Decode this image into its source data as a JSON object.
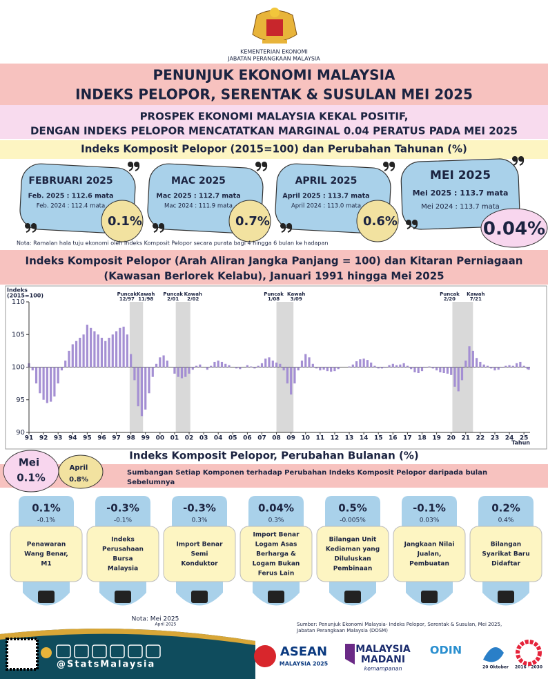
{
  "header": {
    "ministry": "KEMENTERIAN EKONOMI",
    "department": "JABATAN PERANGKAAN MALAYSIA"
  },
  "title_lines": [
    "PENUNJUK EKONOMI MALAYSIA",
    "INDEKS PELOPOR, SERENTAK & SUSULAN MEI 2025"
  ],
  "subtitle_lines": [
    "PROSPEK EKONOMI MALAYSIA KEKAL POSITIF,",
    "DENGAN INDEKS PELOPOR MENCATATKAN MARGINAL 0.04 PERATUS PADA MEI 2025"
  ],
  "annual_section": {
    "title": "Indeks Komposit Pelopor (2015=100) dan Perubahan Tahunan (%)",
    "cards": [
      {
        "month": "FEBRUARI 2025",
        "current": "Feb. 2025 : 112.6 mata",
        "previous": "Feb. 2024 : 112.4 mata",
        "change": "0.1%"
      },
      {
        "month": "MAC 2025",
        "current": "Mac 2025 : 112.7 mata",
        "previous": "Mac 2024 : 111.9 mata",
        "change": "0.7%"
      },
      {
        "month": "APRIL 2025",
        "current": "April 2025 : 113.7 mata",
        "previous": "April 2024 : 113.0 mata",
        "change": "0.6%"
      },
      {
        "month": "MEI 2025",
        "current": "Mei 2025 : 113.7 mata",
        "previous": "Mei 2024 : 113.7 mata",
        "change": "0.04%"
      }
    ],
    "note": "Nota: Ramalan hala tuju ekonomi oleh Indeks Komposit Pelopor secara purata bagi 4 hingga 6 bulan ke hadapan"
  },
  "chart_data": {
    "type": "bar",
    "title_lines": [
      "Indeks Komposit Pelopor (Arah Aliran Jangka Panjang = 100) dan Kitaran Perniagaan",
      "(Kawasan Berlorek Kelabu), Januari 1991 hingga Mei 2025"
    ],
    "ylabel_lines": [
      "Indeks",
      "(2015=100)"
    ],
    "xlabel": "Tahun",
    "color": "#a48fd3",
    "baseline": 100,
    "ylim": [
      90,
      110
    ],
    "yticks": [
      90,
      95,
      100,
      105,
      110
    ],
    "xlim": [
      1991,
      2025.42
    ],
    "xticks": [
      {
        "value": 1991,
        "label": "91"
      },
      {
        "value": 1992,
        "label": "92"
      },
      {
        "value": 1993,
        "label": "93"
      },
      {
        "value": 1994,
        "label": "94"
      },
      {
        "value": 1995,
        "label": "95"
      },
      {
        "value": 1996,
        "label": "96"
      },
      {
        "value": 1997,
        "label": "97"
      },
      {
        "value": 1998,
        "label": "98"
      },
      {
        "value": 1999,
        "label": "99"
      },
      {
        "value": 2000,
        "label": "00"
      },
      {
        "value": 2001,
        "label": "01"
      },
      {
        "value": 2002,
        "label": "02"
      },
      {
        "value": 2003,
        "label": "03"
      },
      {
        "value": 2004,
        "label": "04"
      },
      {
        "value": 2005,
        "label": "05"
      },
      {
        "value": 2006,
        "label": "06"
      },
      {
        "value": 2007,
        "label": "07"
      },
      {
        "value": 2008,
        "label": "08"
      },
      {
        "value": 2009,
        "label": "09"
      },
      {
        "value": 2010,
        "label": "10"
      },
      {
        "value": 2011,
        "label": "11"
      },
      {
        "value": 2012,
        "label": "12"
      },
      {
        "value": 2013,
        "label": "13"
      },
      {
        "value": 2014,
        "label": "14"
      },
      {
        "value": 2015,
        "label": "15"
      },
      {
        "value": 2016,
        "label": "16"
      },
      {
        "value": 2017,
        "label": "17"
      },
      {
        "value": 2018,
        "label": "18"
      },
      {
        "value": 2019,
        "label": "19"
      },
      {
        "value": 2020,
        "label": "20"
      },
      {
        "value": 2021,
        "label": "21"
      },
      {
        "value": 2022,
        "label": "22"
      },
      {
        "value": 2023,
        "label": "23"
      },
      {
        "value": 2024,
        "label": "24"
      },
      {
        "value": 2025,
        "label": "25"
      }
    ],
    "shaded_regions": [
      {
        "start": 1997.917,
        "end": 1998.833,
        "peak_label": "Puncak",
        "peak_date": "12/97",
        "trough_label": "Kawah",
        "trough_date": "11/98"
      },
      {
        "start": 2001.083,
        "end": 2002.083,
        "peak_label": "Puncak",
        "peak_date": "2/01",
        "trough_label": "Kawah",
        "trough_date": "2/02"
      },
      {
        "start": 2008.0,
        "end": 2009.167,
        "peak_label": "Puncak",
        "peak_date": "1/08",
        "trough_label": "Kawah",
        "trough_date": "3/09"
      },
      {
        "start": 2020.083,
        "end": 2021.5,
        "peak_label": "Puncak",
        "peak_date": "2/20",
        "trough_label": "Kawah",
        "trough_date": "7/21"
      }
    ],
    "x": [
      1991,
      1991.25,
      1991.5,
      1991.75,
      1992,
      1992.25,
      1992.5,
      1992.75,
      1993,
      1993.25,
      1993.5,
      1993.75,
      1994,
      1994.25,
      1994.5,
      1994.75,
      1995,
      1995.25,
      1995.5,
      1995.75,
      1996,
      1996.25,
      1996.5,
      1996.75,
      1997,
      1997.25,
      1997.5,
      1997.75,
      1998,
      1998.25,
      1998.5,
      1998.75,
      1999,
      1999.25,
      1999.5,
      1999.75,
      2000,
      2000.25,
      2000.5,
      2000.75,
      2001,
      2001.25,
      2001.5,
      2001.75,
      2002,
      2002.25,
      2002.5,
      2002.75,
      2003,
      2003.25,
      2003.5,
      2003.75,
      2004,
      2004.25,
      2004.5,
      2004.75,
      2005,
      2005.25,
      2005.5,
      2005.75,
      2006,
      2006.25,
      2006.5,
      2006.75,
      2007,
      2007.25,
      2007.5,
      2007.75,
      2008,
      2008.25,
      2008.5,
      2008.75,
      2009,
      2009.25,
      2009.5,
      2009.75,
      2010,
      2010.25,
      2010.5,
      2010.75,
      2011,
      2011.25,
      2011.5,
      2011.75,
      2012,
      2012.25,
      2012.5,
      2012.75,
      2013,
      2013.25,
      2013.5,
      2013.75,
      2014,
      2014.25,
      2014.5,
      2014.75,
      2015,
      2015.25,
      2015.5,
      2015.75,
      2016,
      2016.25,
      2016.5,
      2016.75,
      2017,
      2017.25,
      2017.5,
      2017.75,
      2018,
      2018.25,
      2018.5,
      2018.75,
      2019,
      2019.25,
      2019.5,
      2019.75,
      2020,
      2020.25,
      2020.5,
      2020.75,
      2021,
      2021.25,
      2021.5,
      2021.75,
      2022,
      2022.25,
      2022.5,
      2022.75,
      2023,
      2023.25,
      2023.5,
      2023.75,
      2024,
      2024.25,
      2024.5,
      2024.75,
      2025,
      2025.25,
      2025.33
    ],
    "values": [
      100.6,
      99.5,
      97.5,
      96.0,
      95.0,
      94.5,
      94.7,
      95.5,
      97.5,
      99.5,
      101.0,
      102.5,
      103.5,
      104.0,
      104.5,
      105.0,
      106.5,
      106.0,
      105.5,
      105.0,
      104.5,
      104.0,
      104.5,
      105.0,
      105.5,
      106.0,
      106.2,
      105.0,
      102.0,
      98.0,
      94.0,
      92.5,
      93.5,
      96.0,
      98.5,
      100.5,
      101.5,
      101.8,
      101.0,
      100.0,
      99.0,
      98.5,
      98.3,
      98.5,
      99.0,
      99.6,
      100.2,
      100.4,
      100.0,
      99.6,
      100.2,
      100.8,
      101.0,
      100.8,
      100.5,
      100.3,
      100.0,
      99.8,
      99.7,
      100.0,
      100.3,
      100.1,
      99.8,
      100.2,
      100.6,
      101.3,
      101.5,
      101.0,
      100.7,
      100.5,
      99.5,
      97.5,
      95.8,
      97.5,
      99.5,
      101.0,
      102.0,
      101.5,
      100.5,
      99.8,
      99.5,
      99.6,
      99.4,
      99.3,
      99.4,
      99.7,
      100.0,
      100.0,
      100.1,
      100.4,
      100.9,
      101.2,
      101.3,
      101.1,
      100.7,
      100.2,
      99.8,
      99.8,
      99.9,
      100.3,
      100.5,
      100.3,
      100.4,
      100.6,
      100.2,
      99.7,
      99.2,
      99.1,
      99.4,
      99.9,
      100.1,
      99.8,
      99.5,
      99.2,
      99.1,
      99.0,
      98.8,
      97.0,
      96.3,
      98.0,
      101.0,
      103.2,
      102.5,
      101.4,
      100.8,
      100.4,
      100.2,
      99.8,
      99.5,
      99.6,
      99.9,
      100.2,
      100.3,
      100.2,
      100.6,
      100.8,
      100.2,
      99.7,
      99.6
    ]
  },
  "monthly_section": {
    "current_month": "Mei",
    "current_change": "0.1%",
    "previous_month": "April",
    "previous_change": "0.8%",
    "title": "Indeks Komposit Pelopor, Perubahan Bulanan (%)",
    "subtitle_lines": [
      "Sumbangan Setiap Komponen terhadap Perubahan Indeks Komposit Pelopor daripada bulan",
      "Sebelumnya"
    ],
    "components": [
      {
        "current": "0.1%",
        "previous": "-0.1%",
        "label_lines": [
          "Penawaran",
          "Wang Benar,",
          "M1"
        ]
      },
      {
        "current": "-0.3%",
        "previous": "-0.1%",
        "label_lines": [
          "Indeks",
          "Perusahaan",
          "Bursa",
          "Malaysia"
        ]
      },
      {
        "current": "-0.3%",
        "previous": "0.3%",
        "label_lines": [
          "Import Benar",
          "Semi",
          "Konduktor"
        ]
      },
      {
        "current": "0.04%",
        "previous": "0.3%",
        "label_lines": [
          "Import Benar",
          "Logam Asas",
          "Berharga &",
          "Logam Bukan",
          "Ferus Lain"
        ]
      },
      {
        "current": "0.5%",
        "previous": "-0.005%",
        "label_lines": [
          "Bilangan Unit",
          "Kediaman yang",
          "Diluluskan",
          "Pembinaan"
        ]
      },
      {
        "current": "-0.1%",
        "previous": "0.03%",
        "label_lines": [
          "Jangkaan Nilai",
          "Jualan,",
          "Pembuatan"
        ]
      },
      {
        "current": "0.2%",
        "previous": "0.4%",
        "label_lines": [
          "Bilangan",
          "Syarikat Baru",
          "Didaftar"
        ]
      }
    ],
    "note_lines": [
      "Nota: Mei 2025",
      "April 2025"
    ],
    "source_lines": [
      "Sumber: Penunjuk Ekonomi Malaysia- Indeks Pelopor, Serentak & Susulan, Mei 2025,",
      "Jabatan Perangkaan Malaysia (DOSM)"
    ]
  },
  "footer": {
    "handle": "@StatsMalaysia",
    "logos": [
      "ASEAN",
      "MALAYSIA 2025",
      "MALAYSIA",
      "MADANI",
      "kemampanan",
      "ODIN",
      "20 Oktober",
      "2016 - 2030"
    ]
  }
}
